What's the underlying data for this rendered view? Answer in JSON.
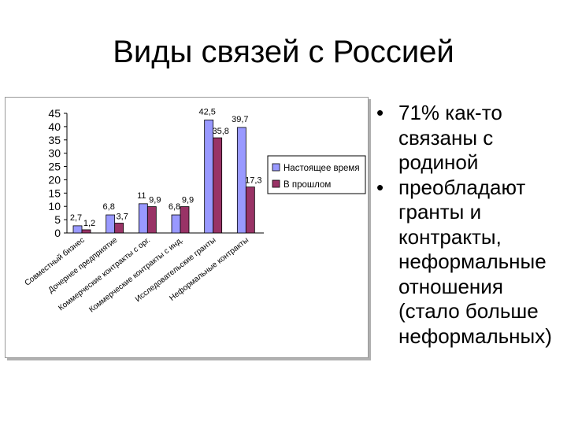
{
  "slide": {
    "title": "Виды связей с Россией"
  },
  "bullets": {
    "marker": "•",
    "items": [
      "71% как-то связаны с родиной",
      "преобладают гранты и контракты, неформальные отношения (стало больше неформальных)"
    ]
  },
  "colors": {
    "series_current": "#9999ff",
    "series_past": "#993366",
    "axis": "#000000"
  },
  "chart_data": {
    "type": "bar",
    "categories": [
      "Совместный бизнес",
      "Дочернее предприятие",
      "Коммерческие контракты с орг.",
      "Коммерческие контракты с инд.",
      "Исследовательские гранты",
      "Неформальные контракты"
    ],
    "series": [
      {
        "name": "Настоящее время",
        "values": [
          2.7,
          6.8,
          11,
          6.8,
          42.5,
          39.7
        ]
      },
      {
        "name": "В прошлом",
        "values": [
          1.2,
          3.7,
          9.9,
          9.9,
          35.8,
          17.3
        ]
      }
    ],
    "value_labels": [
      [
        "2,7",
        "6,8",
        "11",
        "6,8",
        "42,5",
        "39,7"
      ],
      [
        "1,2",
        "3,7",
        "9,9",
        "9,9",
        "35,8",
        "17,3"
      ]
    ],
    "yticks": [
      0,
      5,
      10,
      15,
      20,
      25,
      30,
      35,
      40,
      45
    ],
    "ylim": [
      0,
      45
    ],
    "legend_position": "right",
    "grid": false,
    "title": "",
    "xlabel": "",
    "ylabel": ""
  }
}
